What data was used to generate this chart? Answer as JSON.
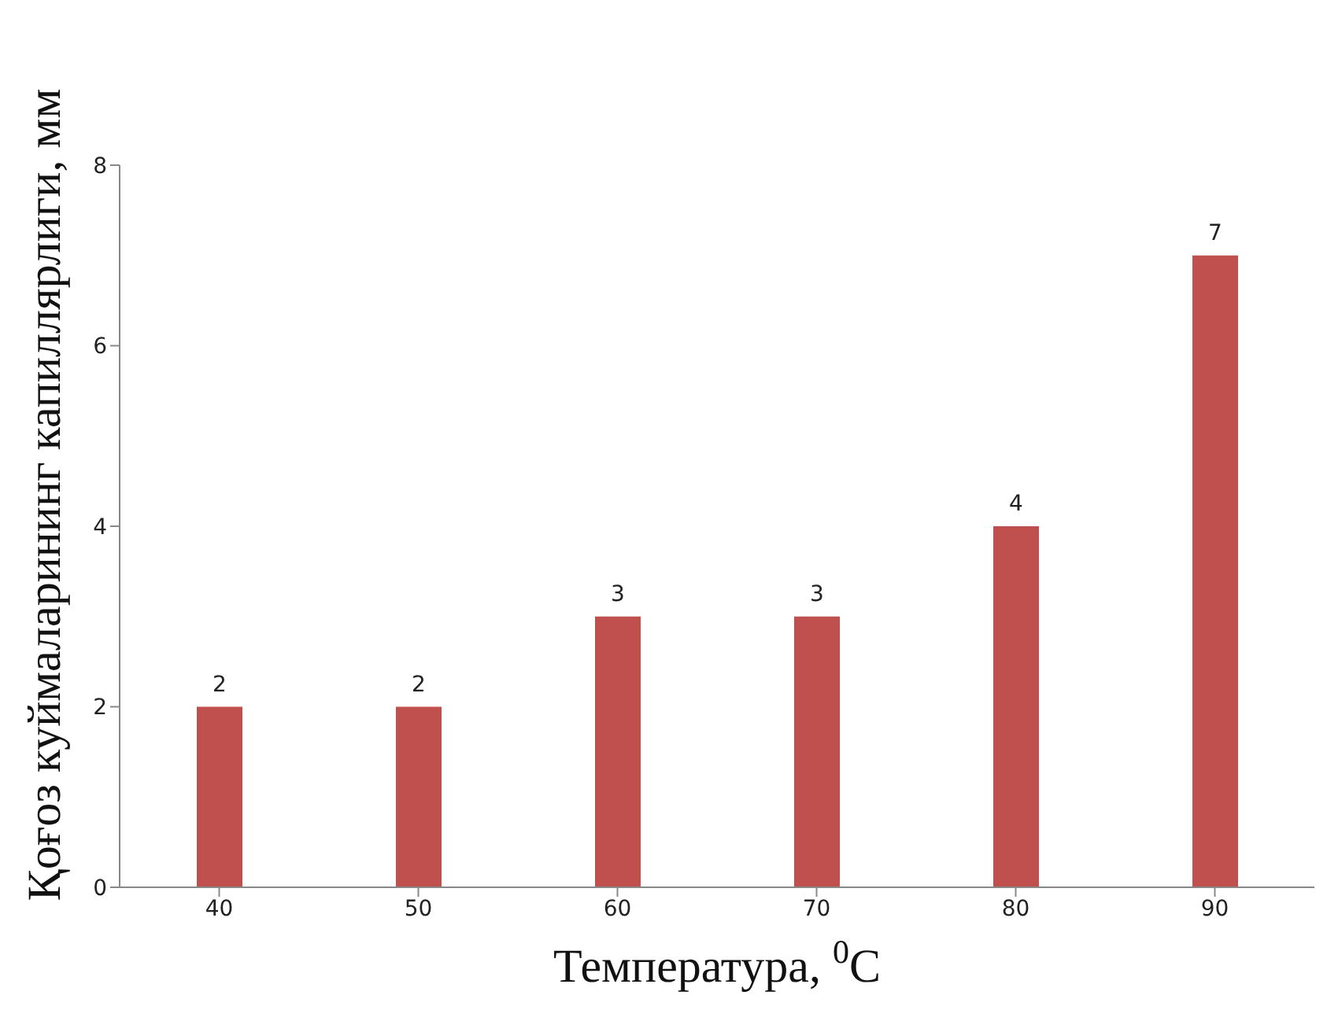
{
  "chart_data": {
    "type": "bar",
    "xlabel": "Температура, $^{0}$C",
    "ylabel": "Қоғоз куймаларининг капиллярлиги, мм",
    "categories": [
      "40",
      "50",
      "60",
      "70",
      "80",
      "90"
    ],
    "values": [
      2,
      2,
      3,
      3,
      4,
      7
    ],
    "color": "#c0504d",
    "ylim": [
      0,
      8
    ],
    "yticks": [
      0,
      2,
      4,
      6,
      8
    ],
    "data_labels": true,
    "grid": false,
    "legend": false
  }
}
